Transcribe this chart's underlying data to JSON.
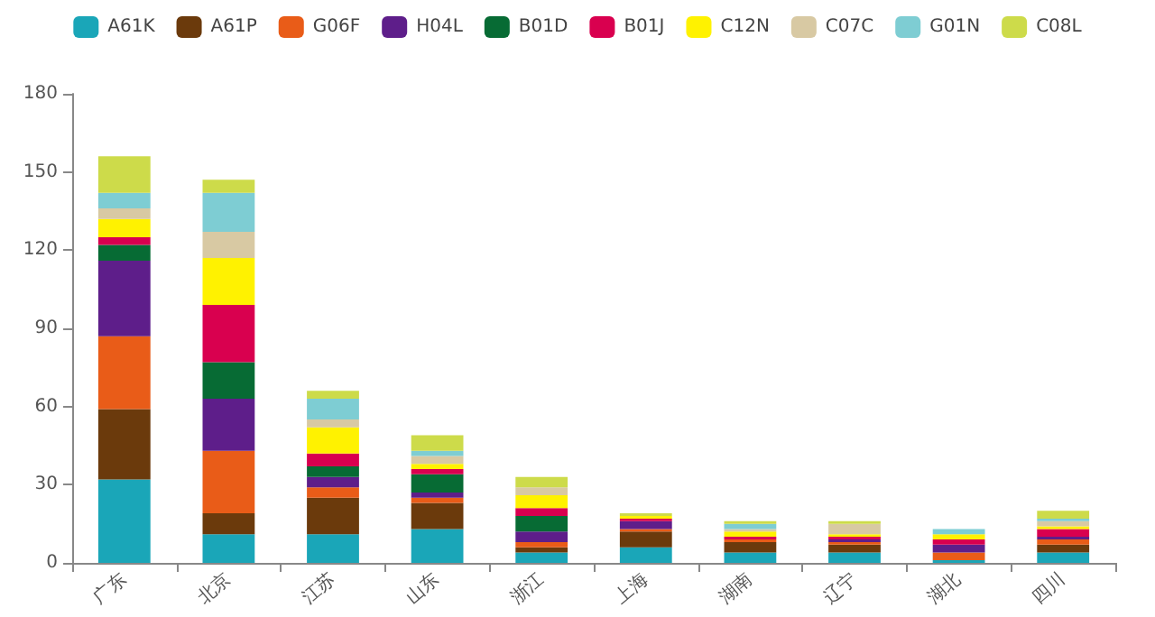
{
  "chart_data": {
    "type": "bar",
    "stacked": true,
    "categories": [
      "广东",
      "北京",
      "江苏",
      "山东",
      "浙江",
      "上海",
      "湖南",
      "辽宁",
      "湖北",
      "四川"
    ],
    "series": [
      {
        "name": "A61K",
        "color": "#1aa6b8",
        "values": [
          32,
          11,
          11,
          13,
          4,
          6,
          4,
          4,
          1,
          4
        ]
      },
      {
        "name": "A61P",
        "color": "#6b3a0c",
        "values": [
          27,
          8,
          14,
          10,
          2,
          6,
          4,
          3,
          0,
          3
        ]
      },
      {
        "name": "G06F",
        "color": "#e95c18",
        "values": [
          28,
          24,
          4,
          2,
          2,
          1,
          1,
          1,
          3,
          2
        ]
      },
      {
        "name": "H04L",
        "color": "#5e1e8a",
        "values": [
          29,
          20,
          4,
          2,
          4,
          3,
          0,
          1,
          3,
          1
        ]
      },
      {
        "name": "B01D",
        "color": "#076b34",
        "values": [
          6,
          14,
          4,
          7,
          6,
          0,
          0,
          0,
          0,
          0
        ]
      },
      {
        "name": "B01J",
        "color": "#d9004f",
        "values": [
          3,
          22,
          5,
          2,
          3,
          1,
          1,
          1,
          2,
          3
        ]
      },
      {
        "name": "C12N",
        "color": "#fff200",
        "values": [
          7,
          18,
          10,
          2,
          5,
          1,
          2,
          1,
          2,
          1
        ]
      },
      {
        "name": "C07C",
        "color": "#d8c9a3",
        "values": [
          4,
          10,
          3,
          3,
          3,
          0,
          1,
          4,
          0,
          2
        ]
      },
      {
        "name": "G01N",
        "color": "#7ecdd3",
        "values": [
          6,
          15,
          8,
          2,
          0,
          0,
          2,
          0,
          2,
          1
        ]
      },
      {
        "name": "C08L",
        "color": "#cddb4a",
        "values": [
          14,
          5,
          3,
          6,
          4,
          1,
          1,
          1,
          0,
          3
        ]
      }
    ],
    "ylim": [
      0,
      180
    ],
    "yticks": [
      0,
      30,
      60,
      90,
      120,
      150,
      180
    ],
    "grid": false,
    "legend": "top"
  }
}
